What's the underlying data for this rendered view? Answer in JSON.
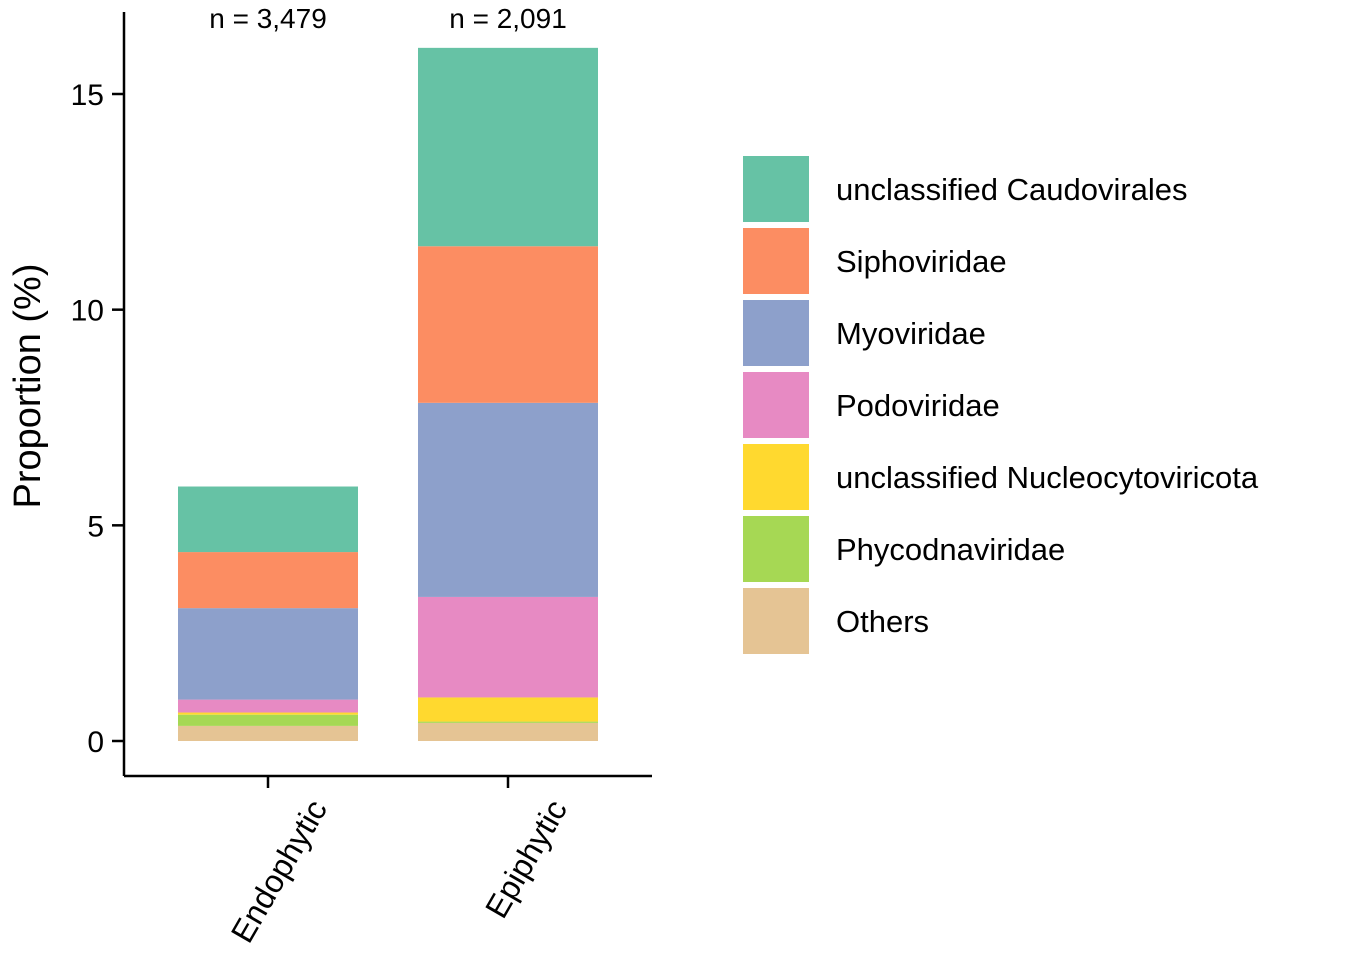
{
  "chart_data": {
    "type": "bar",
    "stacked": true,
    "ylabel": "Proportion (%)",
    "xlabel": "",
    "ylim": [
      0,
      16.5
    ],
    "yticks": [
      0,
      5,
      10,
      15
    ],
    "grid": false,
    "legend_position": "right",
    "categories": [
      "Endophytic",
      "Epiphytic"
    ],
    "annotations": [
      "n = 3,479",
      "n = 2,091"
    ],
    "series": [
      {
        "name": "Others",
        "color": "#e5c494",
        "values": [
          0.35,
          0.42
        ]
      },
      {
        "name": "Phycodnaviridae",
        "color": "#a6d854",
        "values": [
          0.26,
          0.03
        ]
      },
      {
        "name": "unclassified Nucleocytoviricota",
        "color": "#ffd92f",
        "values": [
          0.05,
          0.56
        ]
      },
      {
        "name": "Podoviridae",
        "color": "#e78ac3",
        "values": [
          0.3,
          2.33
        ]
      },
      {
        "name": "Myoviridae",
        "color": "#8da0cb",
        "values": [
          2.12,
          4.5
        ]
      },
      {
        "name": "Siphoviridae",
        "color": "#fc8d62",
        "values": [
          1.3,
          3.63
        ]
      },
      {
        "name": "unclassified Caudovirales",
        "color": "#66c2a5",
        "values": [
          1.52,
          4.6
        ]
      }
    ],
    "legend_order": [
      "unclassified Caudovirales",
      "Siphoviridae",
      "Myoviridae",
      "Podoviridae",
      "unclassified Nucleocytoviricota",
      "Phycodnaviridae",
      "Others"
    ]
  }
}
